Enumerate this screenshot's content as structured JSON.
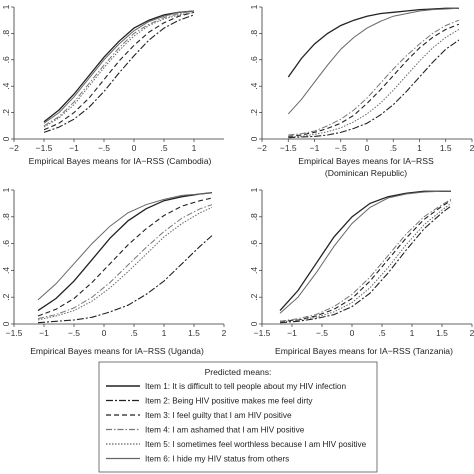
{
  "legend": {
    "title": "Predicted means:",
    "items": [
      "Item 1: It is difficult to tell people about my HIV infection",
      "Item 2: Being HIV positive makes me feel dirty",
      "Item 3: I feel guilty that I am HIV positive",
      "Item 4: I am ashamed that I am HIV positive",
      "Item 5: I sometimes feel worthless because I am HIV positive",
      "Item 6: I hide my HIV status from others"
    ]
  },
  "series_styles": [
    {
      "color": "#222222",
      "dash": "",
      "width": 1.3
    },
    {
      "color": "#222222",
      "dash": "7 2 2 2",
      "width": 1.1
    },
    {
      "color": "#222222",
      "dash": "5 3",
      "width": 1.1
    },
    {
      "color": "#777777",
      "dash": "6 2 1.5 2",
      "width": 1.0
    },
    {
      "color": "#666666",
      "dash": "1.5 1.5",
      "width": 1.0
    },
    {
      "color": "#666666",
      "dash": "",
      "width": 1.0
    }
  ],
  "chart_data": [
    {
      "type": "line",
      "xlabel": "Empirical Bayes means for IA−RSS (Cambodia)",
      "xlabel2": "",
      "xlim": [
        -2,
        1.5
      ],
      "ylim": [
        0,
        1
      ],
      "xticks": [
        "−2",
        "−1.5",
        "−1",
        "−.5",
        "0",
        ".5",
        "1"
      ],
      "yticks": [
        "0",
        ".2",
        ".4",
        ".6",
        ".8",
        "1"
      ],
      "x": [
        -1.5,
        -1.25,
        -1,
        -0.75,
        -0.5,
        -0.25,
        0,
        0.25,
        0.5,
        0.75,
        1
      ],
      "series": [
        {
          "name": "Item 1",
          "values": [
            0.13,
            0.22,
            0.34,
            0.48,
            0.62,
            0.74,
            0.84,
            0.9,
            0.94,
            0.96,
            0.97
          ]
        },
        {
          "name": "Item 2",
          "values": [
            0.05,
            0.09,
            0.15,
            0.24,
            0.36,
            0.5,
            0.63,
            0.75,
            0.84,
            0.9,
            0.94
          ]
        },
        {
          "name": "Item 3",
          "values": [
            0.07,
            0.12,
            0.2,
            0.31,
            0.45,
            0.59,
            0.71,
            0.81,
            0.88,
            0.93,
            0.96
          ]
        },
        {
          "name": "Item 4",
          "values": [
            0.1,
            0.17,
            0.28,
            0.42,
            0.56,
            0.69,
            0.8,
            0.87,
            0.92,
            0.95,
            0.97
          ]
        },
        {
          "name": "Item 5",
          "values": [
            0.09,
            0.16,
            0.26,
            0.4,
            0.54,
            0.67,
            0.78,
            0.86,
            0.91,
            0.94,
            0.96
          ]
        },
        {
          "name": "Item 6",
          "values": [
            0.12,
            0.2,
            0.32,
            0.46,
            0.6,
            0.72,
            0.82,
            0.89,
            0.93,
            0.96,
            0.97
          ]
        }
      ]
    },
    {
      "type": "line",
      "xlabel": "Empirical Bayes means for IA−RSS",
      "xlabel2": "(Dominican Republic)",
      "xlim": [
        -2,
        2
      ],
      "ylim": [
        0,
        1
      ],
      "xticks": [
        "−2",
        "−1.5",
        "−1",
        "−.5",
        "0",
        ".5",
        "1",
        "1.5",
        "2"
      ],
      "yticks": [
        "0",
        ".2",
        ".4",
        ".6",
        ".8",
        "1"
      ],
      "x": [
        -1.5,
        -1.25,
        -1,
        -0.75,
        -0.5,
        -0.25,
        0,
        0.25,
        0.5,
        0.75,
        1,
        1.25,
        1.5,
        1.75
      ],
      "series": [
        {
          "name": "Item 1",
          "values": [
            0.47,
            0.61,
            0.72,
            0.8,
            0.86,
            0.9,
            0.93,
            0.95,
            0.96,
            0.97,
            0.98,
            0.985,
            0.99,
            0.99
          ]
        },
        {
          "name": "Item 2",
          "values": [
            0.01,
            0.015,
            0.02,
            0.03,
            0.05,
            0.08,
            0.12,
            0.18,
            0.26,
            0.36,
            0.47,
            0.58,
            0.68,
            0.75
          ]
        },
        {
          "name": "Item 3",
          "values": [
            0.02,
            0.03,
            0.05,
            0.08,
            0.12,
            0.18,
            0.27,
            0.37,
            0.48,
            0.59,
            0.69,
            0.77,
            0.83,
            0.87
          ]
        },
        {
          "name": "Item 4",
          "values": [
            0.03,
            0.04,
            0.06,
            0.1,
            0.15,
            0.22,
            0.31,
            0.42,
            0.53,
            0.63,
            0.72,
            0.8,
            0.86,
            0.9
          ]
        },
        {
          "name": "Item 5",
          "values": [
            0.015,
            0.02,
            0.035,
            0.055,
            0.085,
            0.13,
            0.19,
            0.27,
            0.37,
            0.48,
            0.59,
            0.69,
            0.77,
            0.83
          ]
        },
        {
          "name": "Item 6",
          "values": [
            0.19,
            0.3,
            0.43,
            0.56,
            0.68,
            0.77,
            0.84,
            0.89,
            0.93,
            0.95,
            0.97,
            0.98,
            0.985,
            0.99
          ]
        }
      ]
    },
    {
      "type": "line",
      "xlabel": "Empirical Bayes means for IA−RSS (Uganda)",
      "xlabel2": "",
      "xlim": [
        -1.5,
        2
      ],
      "ylim": [
        0,
        1
      ],
      "xticks": [
        "−1.5",
        "−1",
        "−.5",
        "0",
        ".5",
        "1",
        "1.5",
        "2"
      ],
      "yticks": [
        "0",
        ".2",
        ".4",
        ".6",
        ".8",
        "1"
      ],
      "x": [
        -1.1,
        -0.8,
        -0.5,
        -0.2,
        0.1,
        0.4,
        0.7,
        1.0,
        1.3,
        1.6,
        1.8
      ],
      "series": [
        {
          "name": "Item 1",
          "values": [
            0.1,
            0.19,
            0.32,
            0.48,
            0.64,
            0.77,
            0.86,
            0.92,
            0.95,
            0.97,
            0.98
          ]
        },
        {
          "name": "Item 2",
          "values": [
            0.01,
            0.02,
            0.03,
            0.05,
            0.09,
            0.14,
            0.22,
            0.32,
            0.45,
            0.58,
            0.66
          ]
        },
        {
          "name": "Item 3",
          "values": [
            0.06,
            0.11,
            0.19,
            0.31,
            0.45,
            0.59,
            0.71,
            0.81,
            0.88,
            0.92,
            0.94
          ]
        },
        {
          "name": "Item 4",
          "values": [
            0.04,
            0.07,
            0.12,
            0.2,
            0.31,
            0.44,
            0.57,
            0.69,
            0.79,
            0.86,
            0.89
          ]
        },
        {
          "name": "Item 5",
          "values": [
            0.03,
            0.06,
            0.1,
            0.17,
            0.27,
            0.39,
            0.52,
            0.65,
            0.75,
            0.83,
            0.87
          ]
        },
        {
          "name": "Item 6",
          "values": [
            0.18,
            0.3,
            0.45,
            0.6,
            0.73,
            0.83,
            0.89,
            0.93,
            0.96,
            0.97,
            0.98
          ]
        }
      ]
    },
    {
      "type": "line",
      "xlabel": "Empirical Bayes means for IA−RSS (Tanzania)",
      "xlabel2": "",
      "xlim": [
        -1.5,
        2
      ],
      "ylim": [
        0,
        1
      ],
      "xticks": [
        "−1.5",
        "−1",
        "−.5",
        "0",
        ".5",
        "1",
        "1.5",
        "2"
      ],
      "yticks": [
        "0",
        ".2",
        ".4",
        ".6",
        ".8",
        "1"
      ],
      "x": [
        -1.2,
        -0.9,
        -0.6,
        -0.3,
        0,
        0.3,
        0.6,
        0.9,
        1.2,
        1.5,
        1.65
      ],
      "series": [
        {
          "name": "Item 1",
          "values": [
            0.1,
            0.25,
            0.45,
            0.65,
            0.8,
            0.9,
            0.95,
            0.975,
            0.99,
            0.99,
            0.99
          ]
        },
        {
          "name": "Item 2",
          "values": [
            0.01,
            0.02,
            0.04,
            0.07,
            0.13,
            0.23,
            0.38,
            0.55,
            0.71,
            0.83,
            0.88
          ]
        },
        {
          "name": "Item 3",
          "values": [
            0.02,
            0.03,
            0.06,
            0.11,
            0.19,
            0.32,
            0.48,
            0.64,
            0.78,
            0.88,
            0.92
          ]
        },
        {
          "name": "Item 4",
          "values": [
            0.02,
            0.04,
            0.07,
            0.13,
            0.22,
            0.35,
            0.51,
            0.67,
            0.8,
            0.89,
            0.93
          ]
        },
        {
          "name": "Item 5",
          "values": [
            0.015,
            0.03,
            0.05,
            0.09,
            0.16,
            0.27,
            0.42,
            0.59,
            0.74,
            0.85,
            0.9
          ]
        },
        {
          "name": "Item 6",
          "values": [
            0.08,
            0.2,
            0.38,
            0.58,
            0.75,
            0.87,
            0.94,
            0.97,
            0.985,
            0.99,
            0.99
          ]
        }
      ]
    }
  ]
}
